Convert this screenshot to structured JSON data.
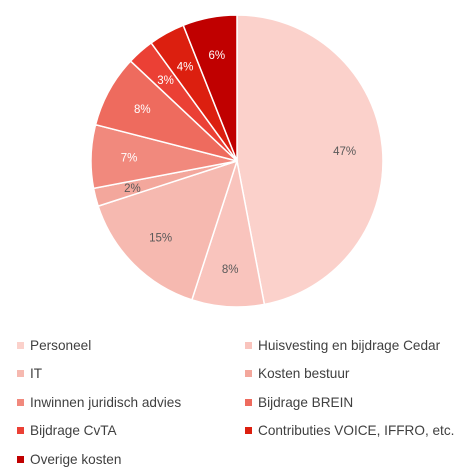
{
  "chart_data": {
    "type": "pie",
    "title": "",
    "legend_position": "bottom",
    "start_angle_deg": 0,
    "direction": "clockwise",
    "slices": [
      {
        "name": "Personeel",
        "value": 47,
        "label": "47%",
        "color": "#FBD1CB"
      },
      {
        "name": "Huisvesting en bijdrage Cedar",
        "value": 8,
        "label": "8%",
        "color": "#F9C4BD"
      },
      {
        "name": "IT",
        "value": 15,
        "label": "15%",
        "color": "#F6B9B0"
      },
      {
        "name": "Kosten bestuur",
        "value": 2,
        "label": "2%",
        "color": "#F3A79C"
      },
      {
        "name": "Inwinnen juridisch advies",
        "value": 7,
        "label": "7%",
        "color": "#F1897D"
      },
      {
        "name": "Bijdrage BREIN",
        "value": 8,
        "label": "8%",
        "color": "#EE6B5E"
      },
      {
        "name": "Bijdrage CvTA",
        "value": 3,
        "label": "3%",
        "color": "#EB4035"
      },
      {
        "name": "Contributies VOICE, IFFRO, etc.",
        "value": 4,
        "label": "4%",
        "color": "#DC1F0F"
      },
      {
        "name": "Overige kosten",
        "value": 6,
        "label": "6%",
        "color": "#C00000"
      }
    ],
    "label_colors": {
      "light": "#595959",
      "dark": "#FFFFFF"
    }
  }
}
